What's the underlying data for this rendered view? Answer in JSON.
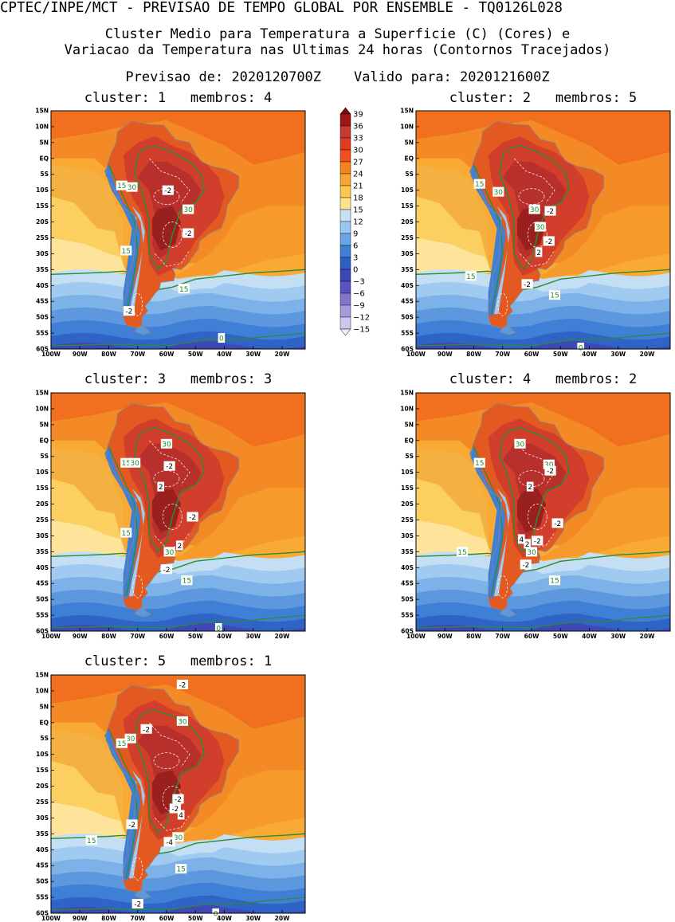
{
  "header": {
    "line1": "CPTEC/INPE/MCT - PREVISAO DE TEMPO GLOBAL POR ENSEMBLE - TQ0126L028",
    "line2": "Cluster Medio para Temperatura a Superficie (C) (Cores) e",
    "line3": "Variacao da Temperatura nas Ultimas 24 horas (Contornos Tracejados)",
    "line4": "Previsao de: 2020120700Z    Valido para: 2020121600Z"
  },
  "panels": [
    {
      "title": "cluster: 1   membros: 4",
      "labels": [
        {
          "t": "15",
          "lon": -75.5,
          "lat": -8.5,
          "c": "g"
        },
        {
          "t": "30",
          "lon": -72,
          "lat": -9,
          "c": "g"
        },
        {
          "t": "-2",
          "lon": -59.5,
          "lat": -10,
          "c": "w"
        },
        {
          "t": "30",
          "lon": -52.5,
          "lat": -16,
          "c": "g"
        },
        {
          "t": "-2",
          "lon": -52.5,
          "lat": -23.5,
          "c": "w"
        },
        {
          "t": "15",
          "lon": -74,
          "lat": -29,
          "c": "g"
        },
        {
          "t": "15",
          "lon": -54,
          "lat": -41,
          "c": "g"
        },
        {
          "t": "-2",
          "lon": -73,
          "lat": -48,
          "c": "w"
        },
        {
          "t": "0",
          "lon": -41,
          "lat": -56.5,
          "c": "g"
        }
      ]
    },
    {
      "title": "cluster: 2   membros: 5",
      "labels": [
        {
          "t": "15",
          "lon": -78,
          "lat": -8,
          "c": "g"
        },
        {
          "t": "30",
          "lon": -71.5,
          "lat": -10.5,
          "c": "g"
        },
        {
          "t": "30",
          "lon": -59,
          "lat": -16,
          "c": "g"
        },
        {
          "t": "-2",
          "lon": -53.5,
          "lat": -16.5,
          "c": "w"
        },
        {
          "t": "30",
          "lon": -57,
          "lat": -21.5,
          "c": "g"
        },
        {
          "t": "-2",
          "lon": -54,
          "lat": -26,
          "c": "w"
        },
        {
          "t": "2",
          "lon": -57.5,
          "lat": -29.5,
          "c": "w"
        },
        {
          "t": "15",
          "lon": -81,
          "lat": -37,
          "c": "g"
        },
        {
          "t": "-2",
          "lon": -61.5,
          "lat": -39.5,
          "c": "w"
        },
        {
          "t": "15",
          "lon": -52,
          "lat": -43,
          "c": "g"
        },
        {
          "t": "0",
          "lon": -43,
          "lat": -59.5,
          "c": "g"
        }
      ]
    },
    {
      "title": "cluster: 3   membros: 3",
      "labels": [
        {
          "t": "30",
          "lon": -60,
          "lat": -1,
          "c": "g"
        },
        {
          "t": "15",
          "lon": -74,
          "lat": -7,
          "c": "g"
        },
        {
          "t": "30",
          "lon": -71,
          "lat": -7,
          "c": "g"
        },
        {
          "t": "-2",
          "lon": -59,
          "lat": -8,
          "c": "w"
        },
        {
          "t": "2",
          "lon": -62,
          "lat": -14.5,
          "c": "w"
        },
        {
          "t": "-2",
          "lon": -51,
          "lat": -24,
          "c": "w"
        },
        {
          "t": "15",
          "lon": -74,
          "lat": -29,
          "c": "g"
        },
        {
          "t": "2",
          "lon": -55.5,
          "lat": -33,
          "c": "w"
        },
        {
          "t": "30",
          "lon": -59,
          "lat": -35,
          "c": "g"
        },
        {
          "t": "-2",
          "lon": -60,
          "lat": -40.5,
          "c": "w"
        },
        {
          "t": "15",
          "lon": -53,
          "lat": -44,
          "c": "g"
        },
        {
          "t": "0",
          "lon": -42,
          "lat": -59,
          "c": "g"
        }
      ]
    },
    {
      "title": "cluster: 4   membros: 2",
      "labels": [
        {
          "t": "30",
          "lon": -64,
          "lat": -1,
          "c": "g"
        },
        {
          "t": "15",
          "lon": -78,
          "lat": -7,
          "c": "g"
        },
        {
          "t": "30",
          "lon": -54,
          "lat": -7.5,
          "c": "g"
        },
        {
          "t": "-2",
          "lon": -53.5,
          "lat": -9.5,
          "c": "w"
        },
        {
          "t": "2",
          "lon": -60.5,
          "lat": -14.5,
          "c": "w"
        },
        {
          "t": "-2",
          "lon": -51,
          "lat": -26,
          "c": "w"
        },
        {
          "t": "4",
          "lon": -63.5,
          "lat": -31,
          "c": "w"
        },
        {
          "t": "2",
          "lon": -61.5,
          "lat": -32.5,
          "c": "w"
        },
        {
          "t": "-2",
          "lon": -58,
          "lat": -31.5,
          "c": "w"
        },
        {
          "t": "30",
          "lon": -60,
          "lat": -35,
          "c": "g"
        },
        {
          "t": "15",
          "lon": -84,
          "lat": -35,
          "c": "g"
        },
        {
          "t": "-2",
          "lon": -62,
          "lat": -39,
          "c": "w"
        },
        {
          "t": "15",
          "lon": -52,
          "lat": -44,
          "c": "g"
        }
      ]
    },
    {
      "title": "cluster: 5   membros: 1",
      "labels": [
        {
          "t": "-2",
          "lon": -54.5,
          "lat": 12,
          "c": "w"
        },
        {
          "t": "30",
          "lon": -54.5,
          "lat": 0.5,
          "c": "g"
        },
        {
          "t": "-2",
          "lon": -67,
          "lat": -2,
          "c": "w"
        },
        {
          "t": "30",
          "lon": -72.5,
          "lat": -5,
          "c": "g"
        },
        {
          "t": "15",
          "lon": -75.5,
          "lat": -6.5,
          "c": "g"
        },
        {
          "t": "-2",
          "lon": -56,
          "lat": -24,
          "c": "w"
        },
        {
          "t": "-2",
          "lon": -57,
          "lat": -27,
          "c": "w"
        },
        {
          "t": "4",
          "lon": -55,
          "lat": -29,
          "c": "w"
        },
        {
          "t": "-2",
          "lon": -72,
          "lat": -32,
          "c": "w"
        },
        {
          "t": "15",
          "lon": -86,
          "lat": -37,
          "c": "g"
        },
        {
          "t": "30",
          "lon": -56,
          "lat": -36,
          "c": "g"
        },
        {
          "t": "-4",
          "lon": -59,
          "lat": -37.5,
          "c": "w"
        },
        {
          "t": "15",
          "lon": -55,
          "lat": -46,
          "c": "g"
        },
        {
          "t": "-2",
          "lon": -70,
          "lat": -57,
          "c": "w"
        },
        {
          "t": "0",
          "lon": -43,
          "lat": -60,
          "c": "g"
        }
      ]
    }
  ],
  "axes": {
    "lat_ticks": [
      {
        "v": 15,
        "t": "15N"
      },
      {
        "v": 10,
        "t": "10N"
      },
      {
        "v": 5,
        "t": "5N"
      },
      {
        "v": 0,
        "t": "EQ"
      },
      {
        "v": -5,
        "t": "5S"
      },
      {
        "v": -10,
        "t": "10S"
      },
      {
        "v": -15,
        "t": "15S"
      },
      {
        "v": -20,
        "t": "20S"
      },
      {
        "v": -25,
        "t": "25S"
      },
      {
        "v": -30,
        "t": "30S"
      },
      {
        "v": -35,
        "t": "35S"
      },
      {
        "v": -40,
        "t": "40S"
      },
      {
        "v": -45,
        "t": "45S"
      },
      {
        "v": -50,
        "t": "50S"
      },
      {
        "v": -55,
        "t": "55S"
      },
      {
        "v": -60,
        "t": "60S"
      }
    ],
    "lon_ticks": [
      {
        "v": -100,
        "t": "100W"
      },
      {
        "v": -90,
        "t": "90W"
      },
      {
        "v": -80,
        "t": "80W"
      },
      {
        "v": -70,
        "t": "70W"
      },
      {
        "v": -60,
        "t": "60W"
      },
      {
        "v": -50,
        "t": "50W"
      },
      {
        "v": -40,
        "t": "40W"
      },
      {
        "v": -30,
        "t": "30W"
      },
      {
        "v": -20,
        "t": "20W"
      }
    ],
    "lon_range": [
      -100,
      -12
    ],
    "lat_range": [
      -60,
      15
    ]
  },
  "colorbar": {
    "levels": [
      "39",
      "36",
      "33",
      "30",
      "27",
      "24",
      "21",
      "18",
      "15",
      "12",
      "9",
      "6",
      "3",
      "0",
      "-3",
      "-6",
      "-9",
      "-12",
      "-15"
    ],
    "colors": [
      "#7a0c0c",
      "#a01515",
      "#c43a35",
      "#e03a22",
      "#f0501c",
      "#f5821e",
      "#f8a632",
      "#fac84a",
      "#fde28a",
      "#c6e0f5",
      "#9ac7ef",
      "#68a4e6",
      "#3f7fd8",
      "#2d5fc4",
      "#3c46b8",
      "#5a52c2",
      "#8076cf",
      "#a69ada",
      "#cfc6ec",
      "#f1eefa"
    ]
  }
}
